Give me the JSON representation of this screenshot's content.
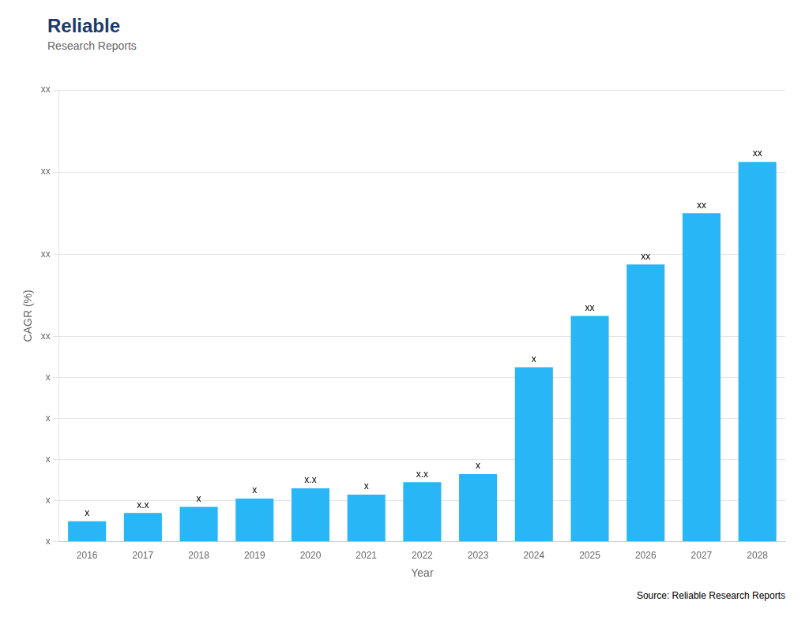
{
  "chart_data": {
    "type": "bar",
    "categories": [
      "2016",
      "2017",
      "2018",
      "2019",
      "2020",
      "2021",
      "2022",
      "2023",
      "2024",
      "2025",
      "2026",
      "2027",
      "2028"
    ],
    "values": [
      1.0,
      1.4,
      1.7,
      2.1,
      2.6,
      2.3,
      2.9,
      3.3,
      8.5,
      11.0,
      13.5,
      16.0,
      18.5
    ],
    "value_labels": [
      "x",
      "x.x",
      "x",
      "x",
      "x.x",
      "x",
      "x.x",
      "x",
      "x",
      "xx",
      "xx",
      "xx",
      "xx"
    ],
    "data_labels": true,
    "color": "#29B6F6",
    "x_label": "Year",
    "y_label": "CAGR (%)",
    "ylim": [
      0,
      22
    ],
    "yticks": [
      {
        "value": 0,
        "label": "x"
      },
      {
        "value": 2,
        "label": "x"
      },
      {
        "value": 4,
        "label": "x"
      },
      {
        "value": 6,
        "label": "x"
      },
      {
        "value": 8,
        "label": "x"
      },
      {
        "value": 10,
        "label": "xx"
      },
      {
        "value": 14,
        "label": "xx"
      },
      {
        "value": 18,
        "label": "xx"
      },
      {
        "value": 22,
        "label": "xx"
      }
    ],
    "grid": true,
    "annotations": [
      "Reliable",
      "Research Reports",
      "Source: Reliable Research Reports"
    ]
  }
}
